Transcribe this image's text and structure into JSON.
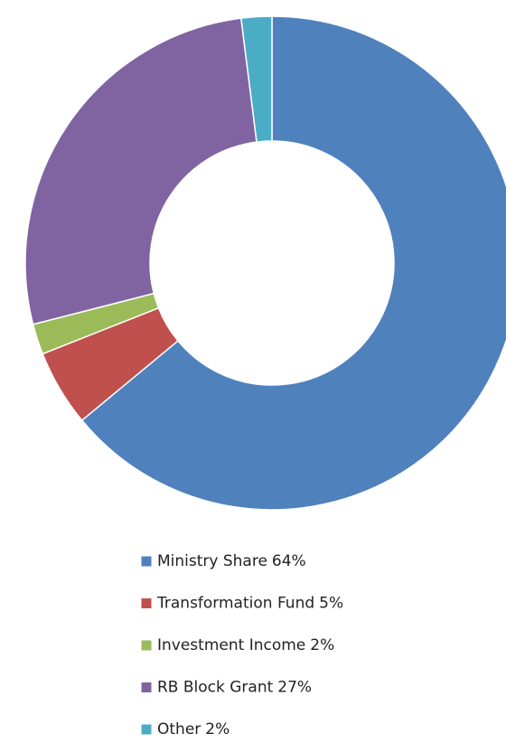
{
  "chart_data": {
    "type": "donut",
    "categories": [
      "Ministry Share",
      "Transformation Fund",
      "Investment Income",
      "RB Block Grant",
      "Other"
    ],
    "values": [
      64,
      5,
      2,
      27,
      2
    ],
    "value_labels": [
      "64%",
      "5%",
      "2%",
      "27%",
      "2%"
    ],
    "colors": [
      "#4f81bd",
      "#c0504d",
      "#9bbb59",
      "#8064a2",
      "#4bacc6"
    ],
    "legend": "bottom"
  }
}
